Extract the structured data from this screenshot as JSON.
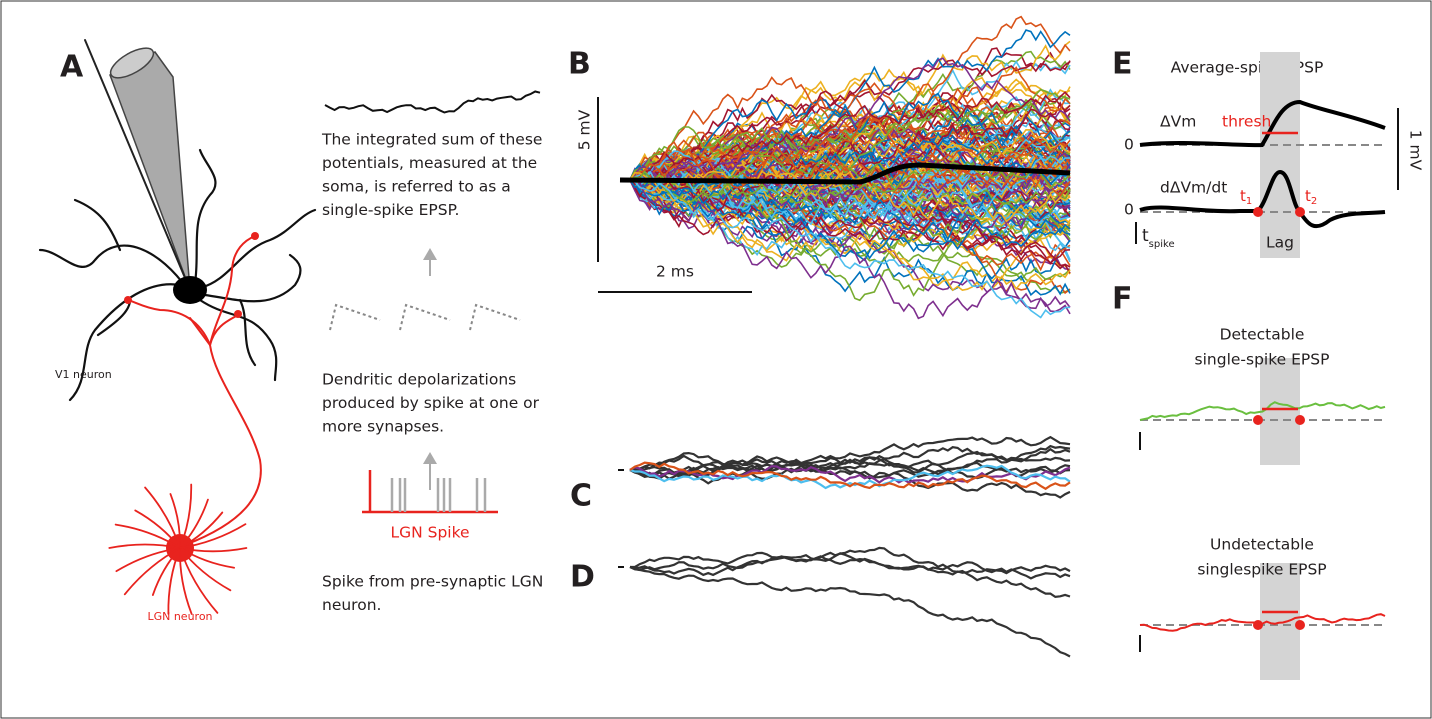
{
  "panel_a": {
    "label": "A",
    "v1_neuron": "V1 neuron",
    "lgn_neuron": "LGN neuron",
    "summary_lines": [
      "The integrated sum of these",
      "potentials, measured at the",
      "soma, is referred to as a",
      "single-spike EPSP."
    ],
    "dendritic_lines": [
      "Dendritic depolarizations",
      "produced by spike at one or",
      "more synapses."
    ],
    "spike_label": "LGN Spike",
    "spike_lines": [
      "Spike from pre-synaptic LGN",
      "neuron."
    ]
  },
  "panel_b": {
    "label": "B",
    "v_scale": "5 mV",
    "t_scale": "2 ms"
  },
  "panel_c": {
    "label": "C"
  },
  "panel_d": {
    "label": "D"
  },
  "panel_e": {
    "label": "E",
    "title": "Average-spike EPSP",
    "dvm": "ΔVm",
    "thresh": "thresh",
    "zero_top": "0",
    "scale": "1 mV",
    "dvm_dt": "dΔVm/dt",
    "zero_bottom": "0",
    "t1": "t",
    "t1_sub": "1",
    "t2": "t",
    "t2_sub": "2",
    "lag": "Lag",
    "tspike": "t",
    "tspike_sub": "spike"
  },
  "panel_f": {
    "label": "F",
    "detectable_lines": [
      "Detectable",
      "single-spike EPSP"
    ],
    "undetectable_lines": [
      "Undetectable",
      "singlespike EPSP"
    ]
  }
}
